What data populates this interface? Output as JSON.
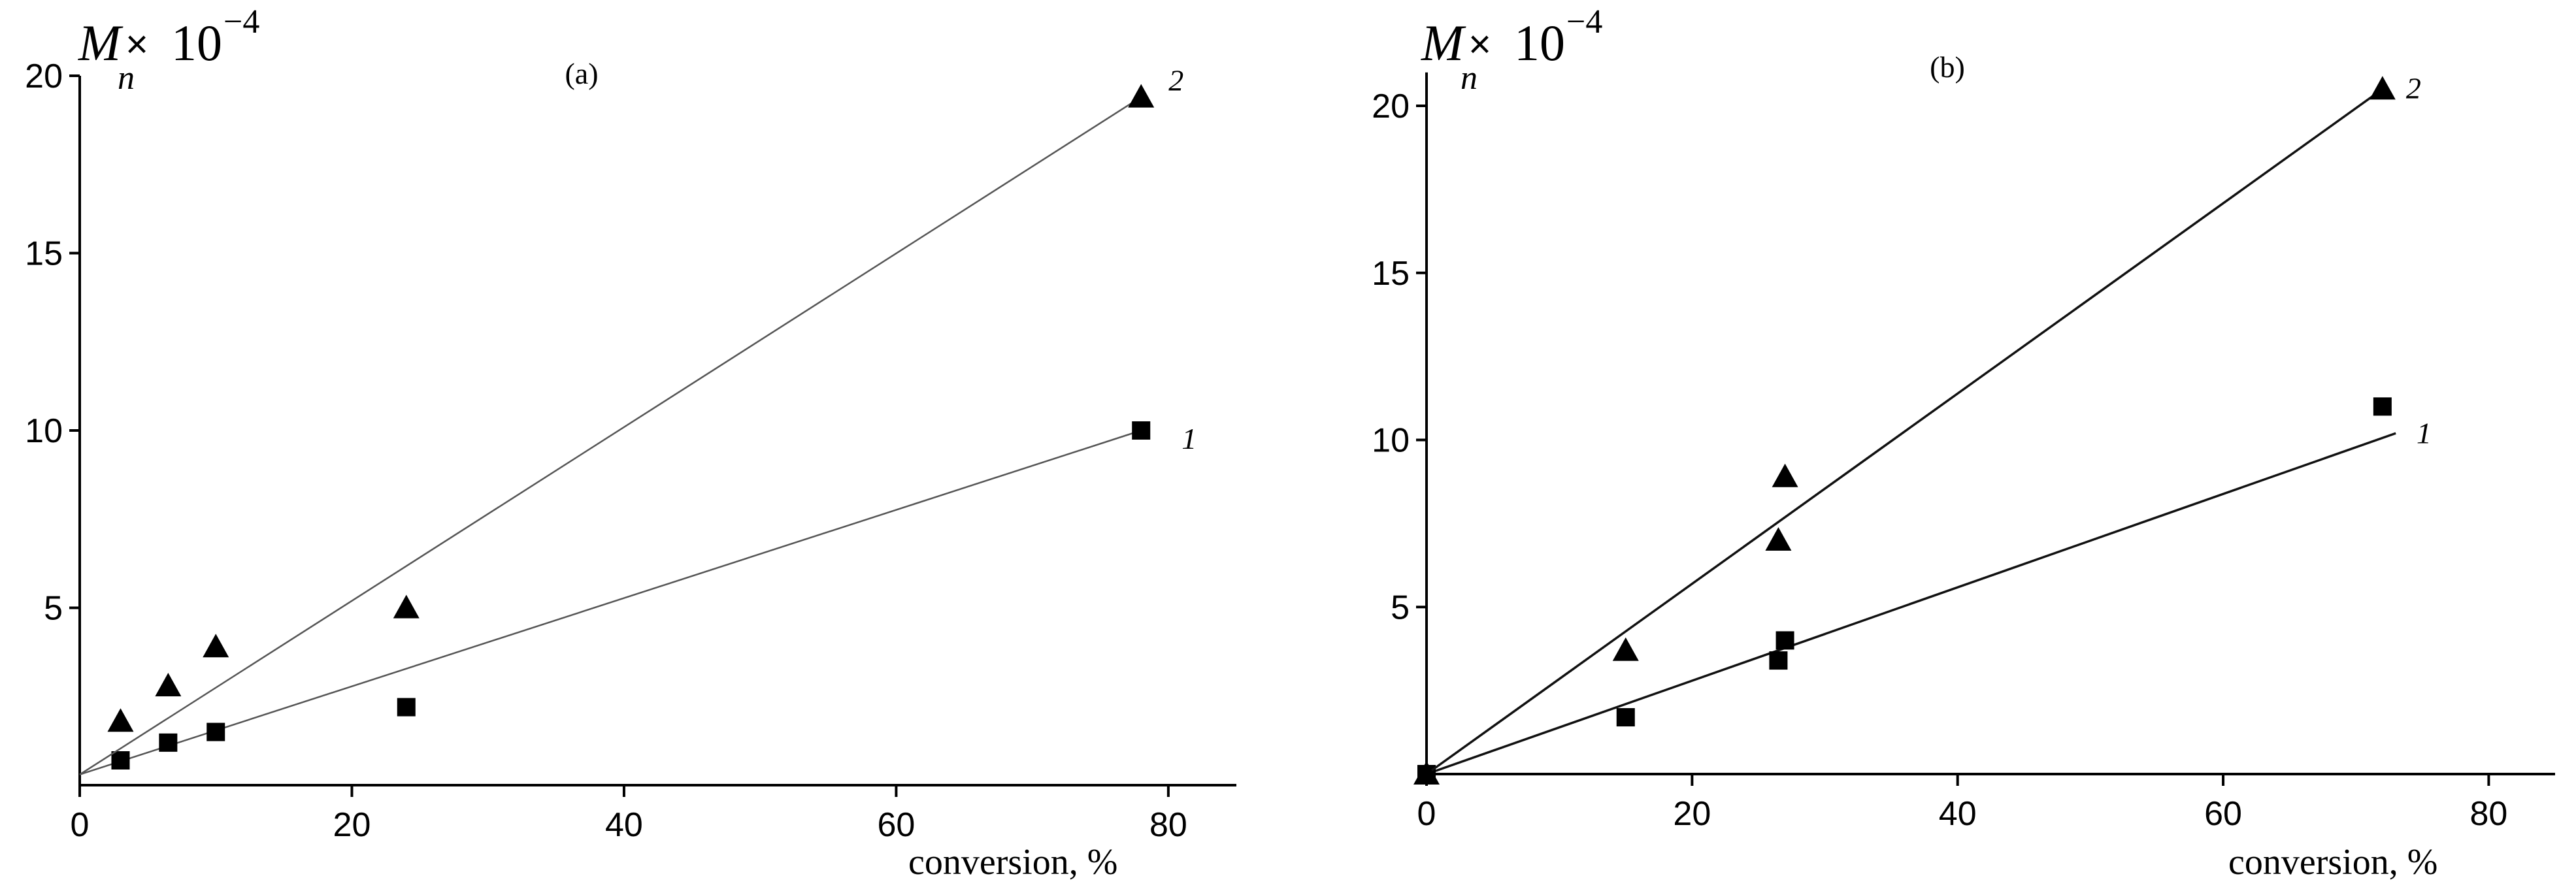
{
  "chart_data": [
    {
      "type": "scatter",
      "panel_label": "(a)",
      "ylabel": {
        "main": "M",
        "sub": "n",
        "times": "×",
        "base": "10",
        "exp": "−4"
      },
      "xlabel": "conversion, %",
      "xlim": [
        0,
        85
      ],
      "ylim": [
        0,
        20
      ],
      "xticks": [
        "0",
        "20",
        "40",
        "60",
        "80"
      ],
      "yticks": [
        "5",
        "10",
        "15",
        "20"
      ],
      "grid": false,
      "series": [
        {
          "name": "1",
          "marker": "square",
          "x": [
            3,
            6.5,
            10,
            24,
            78
          ],
          "y": [
            0.7,
            1.2,
            1.5,
            2.2,
            10
          ],
          "fit": {
            "x": [
              0,
              78
            ],
            "y": [
              0.3,
              10
            ]
          }
        },
        {
          "name": "2",
          "marker": "triangle",
          "x": [
            3,
            6.5,
            10,
            24,
            78
          ],
          "y": [
            1.8,
            2.8,
            3.9,
            5,
            19.4
          ],
          "fit": {
            "x": [
              0,
              78
            ],
            "y": [
              0.3,
              19.4
            ]
          }
        }
      ]
    },
    {
      "type": "scatter",
      "panel_label": "(b)",
      "ylabel": {
        "main": "M",
        "sub": "n",
        "times": "×",
        "base": "10",
        "exp": "−4"
      },
      "xlabel": "conversion, %",
      "xlim": [
        0,
        85
      ],
      "ylim": [
        0,
        21
      ],
      "xticks": [
        "0",
        "20",
        "40",
        "60",
        "80"
      ],
      "yticks": [
        "5",
        "10",
        "15",
        "20"
      ],
      "grid": false,
      "series": [
        {
          "name": "1",
          "marker": "square",
          "x": [
            0,
            15,
            26.5,
            27,
            72
          ],
          "y": [
            0,
            1.7,
            3.4,
            4,
            11
          ],
          "fit": {
            "x": [
              0,
              73
            ],
            "y": [
              0,
              10.2
            ]
          }
        },
        {
          "name": "2",
          "marker": "triangle",
          "x": [
            0,
            15,
            26.5,
            27,
            72
          ],
          "y": [
            0,
            3.7,
            7,
            8.9,
            20.5
          ],
          "fit": {
            "x": [
              0,
              72
            ],
            "y": [
              0,
              20.5
            ]
          }
        }
      ]
    }
  ]
}
